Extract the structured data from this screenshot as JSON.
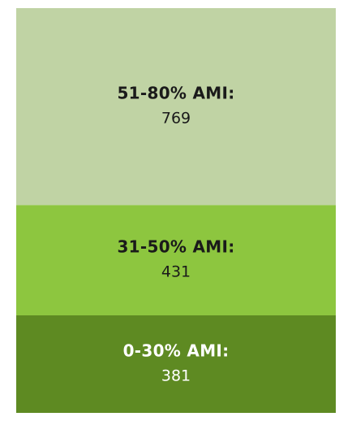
{
  "chart_data": {
    "type": "stacked_column",
    "series": [
      {
        "name": "51-80% AMI:",
        "color": "#c0d3a4",
        "text_color": "#1a1a1a",
        "values": [
          769
        ]
      },
      {
        "name": "31-50% AMI:",
        "color": "#8dc63f",
        "text_color": "#1a1a1a",
        "values": [
          431
        ]
      },
      {
        "name": "0-30% AMI:",
        "color": "#5e8a22",
        "text_color": "#ffffff",
        "values": [
          381
        ]
      }
    ]
  }
}
